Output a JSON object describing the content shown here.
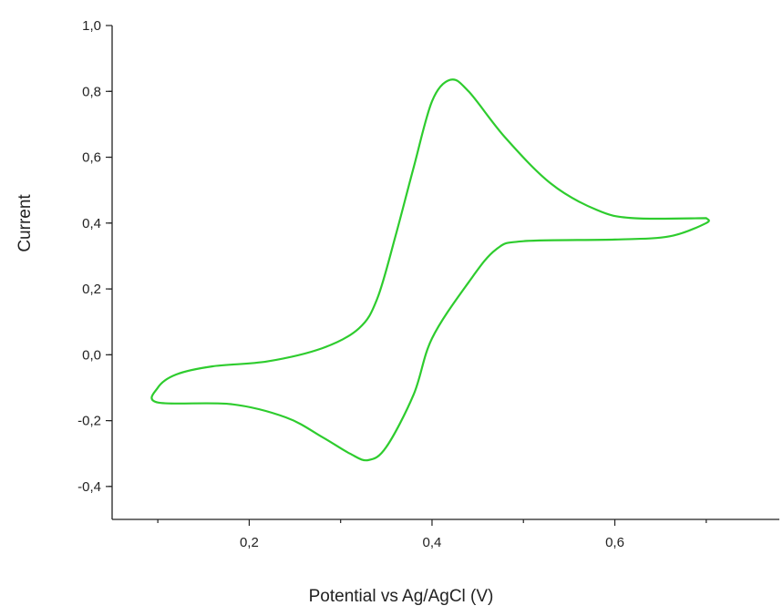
{
  "chart_data": {
    "type": "line",
    "title": "",
    "xlabel": "Potential vs Ag/AgCl (V)",
    "ylabel": "Current",
    "xlim": [
      0.05,
      0.78
    ],
    "ylim": [
      -0.5,
      1.0
    ],
    "x_ticks": [
      0.2,
      0.4,
      0.6
    ],
    "x_tick_labels": [
      "0,2",
      "0,4",
      "0,6"
    ],
    "y_ticks": [
      1.0,
      0.8,
      0.6,
      0.4,
      0.2,
      0.0,
      -0.2,
      -0.4
    ],
    "y_tick_labels": [
      "1,0",
      "0,8",
      "0,6",
      "0,4",
      "0,2",
      "0,0",
      "-0,2",
      "-0,4"
    ],
    "grid": false,
    "series": [
      {
        "color": "#2ecc2e",
        "points": [
          [
            0.7,
            0.415
          ],
          [
            0.62,
            0.415
          ],
          [
            0.58,
            0.44
          ],
          [
            0.53,
            0.52
          ],
          [
            0.48,
            0.66
          ],
          [
            0.44,
            0.8
          ],
          [
            0.42,
            0.835
          ],
          [
            0.4,
            0.77
          ],
          [
            0.38,
            0.57
          ],
          [
            0.36,
            0.36
          ],
          [
            0.34,
            0.17
          ],
          [
            0.32,
            0.08
          ],
          [
            0.28,
            0.02
          ],
          [
            0.22,
            -0.02
          ],
          [
            0.16,
            -0.035
          ],
          [
            0.12,
            -0.06
          ],
          [
            0.1,
            -0.1
          ],
          [
            0.1,
            -0.145
          ],
          [
            0.18,
            -0.15
          ],
          [
            0.24,
            -0.19
          ],
          [
            0.28,
            -0.25
          ],
          [
            0.31,
            -0.3
          ],
          [
            0.33,
            -0.32
          ],
          [
            0.35,
            -0.28
          ],
          [
            0.38,
            -0.12
          ],
          [
            0.4,
            0.05
          ],
          [
            0.44,
            0.22
          ],
          [
            0.47,
            0.32
          ],
          [
            0.5,
            0.345
          ],
          [
            0.6,
            0.35
          ],
          [
            0.66,
            0.36
          ],
          [
            0.7,
            0.4
          ],
          [
            0.7,
            0.415
          ]
        ]
      }
    ]
  }
}
